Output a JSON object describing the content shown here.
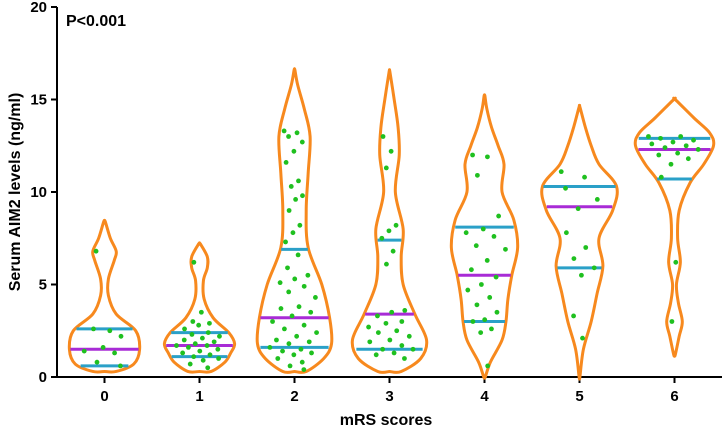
{
  "chart_data": {
    "type": "violin",
    "annotation": "P<0.001",
    "xlabel": "mRS scores",
    "ylabel": "Serum AIM2 levels (ng/ml)",
    "ylim": [
      0,
      20
    ],
    "yticks": [
      0,
      5,
      10,
      15,
      20
    ],
    "categories": [
      "0",
      "1",
      "2",
      "3",
      "4",
      "5",
      "6"
    ],
    "grid": false,
    "colors": {
      "violin": "#f7891e",
      "median": "#a82bd6",
      "quartile": "#2aa0c8",
      "points": "#1fc01f",
      "axis": "#000000"
    },
    "groups": [
      {
        "category": "0",
        "min": 0.3,
        "max": 8.4,
        "median": 1.5,
        "q1": 0.6,
        "q3": 2.6,
        "points": [
          6.8,
          2.5,
          2.6,
          2.2,
          1.6,
          1.4,
          1.3,
          0.8,
          0.6
        ],
        "profile": [
          [
            0.3,
            0.3
          ],
          [
            0.7,
            0.75
          ],
          [
            1.5,
            0.9
          ],
          [
            2.5,
            0.8
          ],
          [
            3.4,
            0.3
          ],
          [
            4.4,
            0.1
          ],
          [
            5.3,
            0.1
          ],
          [
            6.3,
            0.25
          ],
          [
            6.8,
            0.3
          ],
          [
            7.5,
            0.15
          ],
          [
            8.4,
            0.02
          ]
        ]
      },
      {
        "category": "1",
        "min": 0.3,
        "max": 7.2,
        "median": 1.7,
        "q1": 1.1,
        "q3": 2.4,
        "points": [
          6.2,
          3.5,
          3.0,
          2.9,
          2.8,
          2.6,
          2.4,
          2.3,
          2.2,
          2.1,
          2.0,
          1.9,
          1.8,
          1.7,
          1.7,
          1.6,
          1.5,
          1.4,
          1.3,
          1.2,
          1.1,
          1.0,
          0.9,
          0.7,
          0.5
        ],
        "profile": [
          [
            0.3,
            0.3
          ],
          [
            0.8,
            0.65
          ],
          [
            1.3,
            0.8
          ],
          [
            1.8,
            0.9
          ],
          [
            2.4,
            0.75
          ],
          [
            3.2,
            0.35
          ],
          [
            4.2,
            0.12
          ],
          [
            5.2,
            0.1
          ],
          [
            5.9,
            0.2
          ],
          [
            6.5,
            0.2
          ],
          [
            7.2,
            0.02
          ]
        ]
      },
      {
        "category": "2",
        "min": 0.3,
        "max": 16.6,
        "median": 3.2,
        "q1": 1.6,
        "q3": 6.9,
        "points": [
          13.3,
          13.2,
          13.0,
          12.7,
          12.2,
          11.6,
          10.6,
          10.3,
          9.8,
          9.6,
          9.0,
          8.2,
          7.8,
          7.3,
          6.6,
          5.9,
          5.5,
          5.3,
          5.1,
          4.9,
          4.6,
          4.3,
          3.8,
          3.7,
          3.5,
          3.3,
          3.0,
          2.8,
          2.6,
          2.4,
          2.2,
          2.0,
          1.9,
          1.8,
          1.6,
          1.5,
          1.4,
          1.3,
          1.2,
          1.0,
          0.8,
          0.6,
          0.4
        ],
        "profile": [
          [
            0.3,
            0.3
          ],
          [
            1.0,
            0.75
          ],
          [
            1.8,
            0.95
          ],
          [
            3.2,
            0.9
          ],
          [
            5.0,
            0.7
          ],
          [
            7.0,
            0.35
          ],
          [
            9.0,
            0.3
          ],
          [
            11.0,
            0.35
          ],
          [
            13.0,
            0.4
          ],
          [
            14.5,
            0.25
          ],
          [
            15.8,
            0.08
          ],
          [
            16.6,
            0.01
          ]
        ]
      },
      {
        "category": "3",
        "min": 0.3,
        "max": 16.5,
        "median": 3.4,
        "q1": 1.5,
        "q3": 7.4,
        "points": [
          13.0,
          12.2,
          11.3,
          8.2,
          7.9,
          7.5,
          6.8,
          6.1,
          3.6,
          3.5,
          3.3,
          3.0,
          2.9,
          2.7,
          2.5,
          2.4,
          2.2,
          2.0,
          1.9,
          1.7,
          1.5,
          1.5,
          1.3,
          1.2,
          1.0
        ],
        "profile": [
          [
            0.3,
            0.3
          ],
          [
            1.0,
            0.8
          ],
          [
            2.0,
            0.95
          ],
          [
            3.4,
            0.65
          ],
          [
            5.0,
            0.35
          ],
          [
            6.5,
            0.3
          ],
          [
            8.0,
            0.35
          ],
          [
            10.0,
            0.15
          ],
          [
            12.0,
            0.25
          ],
          [
            13.5,
            0.22
          ],
          [
            15.0,
            0.12
          ],
          [
            16.5,
            0.01
          ]
        ]
      },
      {
        "category": "4",
        "min": 0.0,
        "max": 15.2,
        "median": 5.5,
        "q1": 3.0,
        "q3": 8.1,
        "points": [
          12.0,
          11.9,
          10.9,
          8.7,
          8.0,
          7.8,
          7.6,
          7.1,
          6.9,
          6.3,
          5.8,
          5.4,
          5.0,
          4.7,
          4.3,
          3.9,
          3.5,
          3.1,
          3.0,
          2.6,
          2.4,
          0.6
        ],
        "profile": [
          [
            0.0,
            0.02
          ],
          [
            0.8,
            0.15
          ],
          [
            2.0,
            0.45
          ],
          [
            3.0,
            0.55
          ],
          [
            4.2,
            0.6
          ],
          [
            5.5,
            0.7
          ],
          [
            7.0,
            0.85
          ],
          [
            8.5,
            0.75
          ],
          [
            10.0,
            0.45
          ],
          [
            11.5,
            0.5
          ],
          [
            12.5,
            0.35
          ],
          [
            13.5,
            0.18
          ],
          [
            14.5,
            0.06
          ],
          [
            15.2,
            0.01
          ]
        ]
      },
      {
        "category": "5",
        "min": 0.0,
        "max": 14.6,
        "median": 9.2,
        "q1": 5.9,
        "q3": 10.3,
        "points": [
          11.1,
          10.8,
          10.2,
          9.6,
          9.1,
          7.8,
          7.0,
          6.4,
          5.9,
          5.5,
          3.3,
          2.1
        ],
        "profile": [
          [
            0.0,
            0.01
          ],
          [
            1.5,
            0.1
          ],
          [
            3.0,
            0.3
          ],
          [
            4.5,
            0.45
          ],
          [
            6.0,
            0.6
          ],
          [
            7.5,
            0.5
          ],
          [
            9.0,
            0.85
          ],
          [
            10.3,
            0.95
          ],
          [
            11.5,
            0.5
          ],
          [
            12.5,
            0.3
          ],
          [
            13.5,
            0.15
          ],
          [
            14.6,
            0.01
          ]
        ]
      },
      {
        "category": "6",
        "min": 1.2,
        "max": 15.0,
        "median": 12.3,
        "q1": 10.7,
        "q3": 12.9,
        "points": [
          13.0,
          13.0,
          12.9,
          12.8,
          12.7,
          12.6,
          12.5,
          12.4,
          12.3,
          12.1,
          12.0,
          11.8,
          11.5,
          10.8,
          6.2,
          3.0
        ],
        "profile": [
          [
            1.2,
            0.02
          ],
          [
            2.2,
            0.12
          ],
          [
            3.0,
            0.2
          ],
          [
            4.0,
            0.1
          ],
          [
            5.0,
            0.05
          ],
          [
            6.2,
            0.15
          ],
          [
            7.5,
            0.08
          ],
          [
            9.0,
            0.12
          ],
          [
            10.5,
            0.4
          ],
          [
            11.5,
            0.75
          ],
          [
            12.5,
            1.0
          ],
          [
            13.2,
            0.9
          ],
          [
            14.0,
            0.5
          ],
          [
            15.0,
            0.02
          ]
        ]
      }
    ]
  }
}
